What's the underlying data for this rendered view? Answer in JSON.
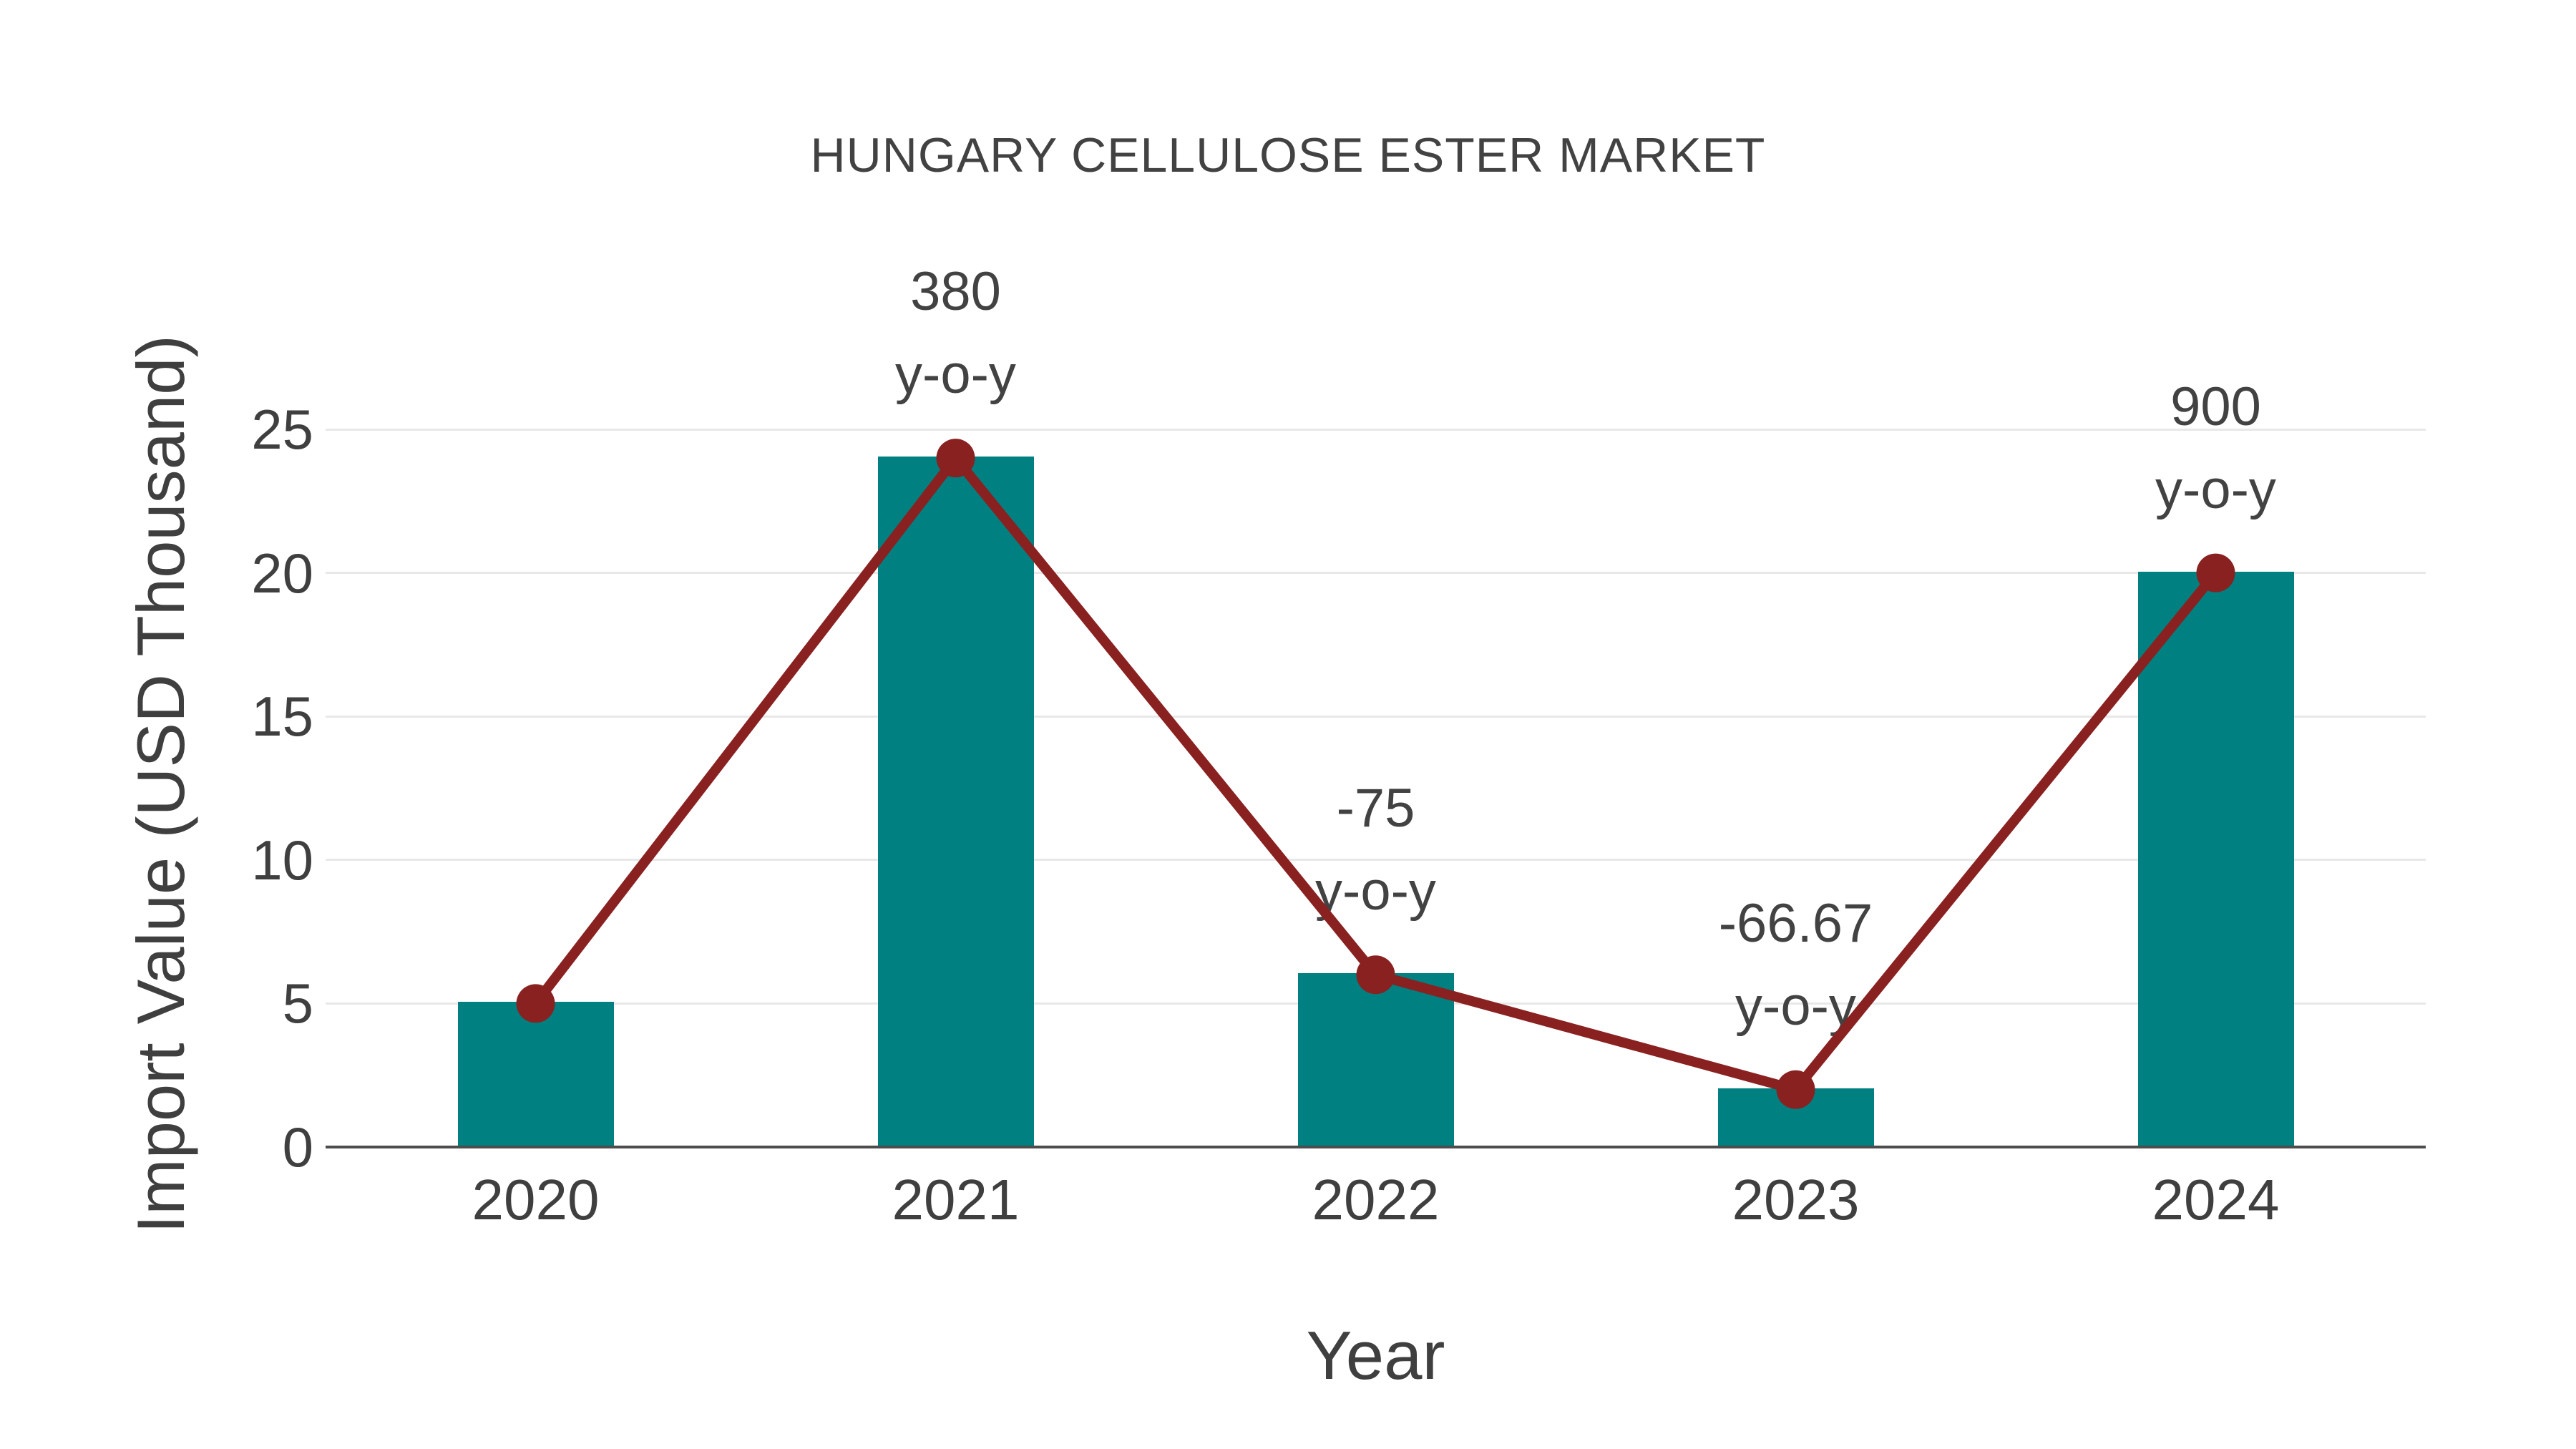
{
  "chart_data": {
    "type": "bar",
    "title": "HUNGARY CELLULOSE ESTER MARKET",
    "xlabel": "Year",
    "ylabel": "Import Value (USD Thousand)",
    "categories": [
      "2020",
      "2021",
      "2022",
      "2023",
      "2024"
    ],
    "series": [
      {
        "name": "import-value-bars",
        "type": "bar",
        "color": "#008080",
        "values": [
          5,
          24,
          6,
          2,
          20
        ]
      },
      {
        "name": "yoy-line",
        "type": "line",
        "color": "#8a2121",
        "values": [
          5,
          24,
          6,
          2,
          20
        ]
      }
    ],
    "annotations": [
      {
        "category": "2021",
        "value": "380",
        "suffix": "y-o-y"
      },
      {
        "category": "2022",
        "value": "-75",
        "suffix": "y-o-y"
      },
      {
        "category": "2023",
        "value": "-66.67",
        "suffix": "y-o-y"
      },
      {
        "category": "2024",
        "value": "900",
        "suffix": "y-o-y"
      }
    ],
    "yticks": [
      0,
      5,
      10,
      15,
      20,
      25
    ],
    "ylim": [
      0,
      25.25
    ],
    "grid": true,
    "legend_position": "none",
    "colors": {
      "bar": "#008080",
      "line": "#8a2121",
      "grid": "#e8e8e8",
      "axis": "#4d4d4d",
      "text": "#424242"
    }
  }
}
